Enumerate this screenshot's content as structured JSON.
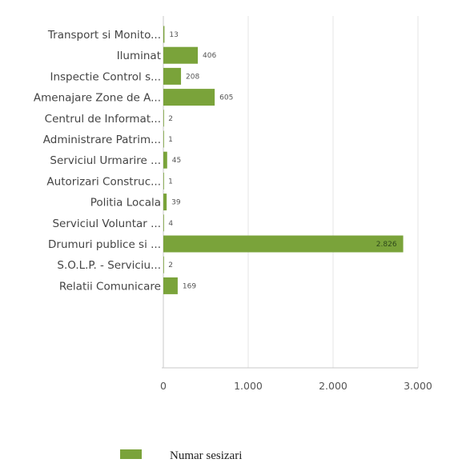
{
  "chart_data": {
    "type": "bar",
    "orientation": "horizontal",
    "categories": [
      "Transport si Monito...",
      "Iluminat",
      "Inspectie Control s...",
      "Amenajare Zone de A...",
      "Centrul de Informat...",
      "Administrare Patrim...",
      "Serviciul Urmarire ...",
      "Autorizari Construc...",
      "Politia Locala",
      "Serviciul Voluntar ...",
      "Drumuri publice si ...",
      "S.O.L.P. - Serviciu...",
      "Relatii Comunicare"
    ],
    "series": [
      {
        "name": "Numar sesizari",
        "values": [
          13,
          406,
          208,
          605,
          2,
          1,
          45,
          1,
          39,
          4,
          2826,
          2,
          169
        ],
        "value_labels": [
          "13",
          "406",
          "208",
          "605",
          "2",
          "1",
          "45",
          "1",
          "39",
          "4",
          "2.826",
          "2",
          "169"
        ]
      }
    ],
    "xlim": [
      0,
      3000
    ],
    "x_ticks": [
      0,
      1000,
      2000,
      3000
    ],
    "x_tick_labels": [
      "0",
      "1.000",
      "2.000",
      "3.000"
    ],
    "grid": "vertical",
    "legend": "bottom",
    "colors": {
      "bar": "#7aa33a",
      "grid": "#e6e6e6",
      "axis": "#c8c8c8"
    }
  }
}
